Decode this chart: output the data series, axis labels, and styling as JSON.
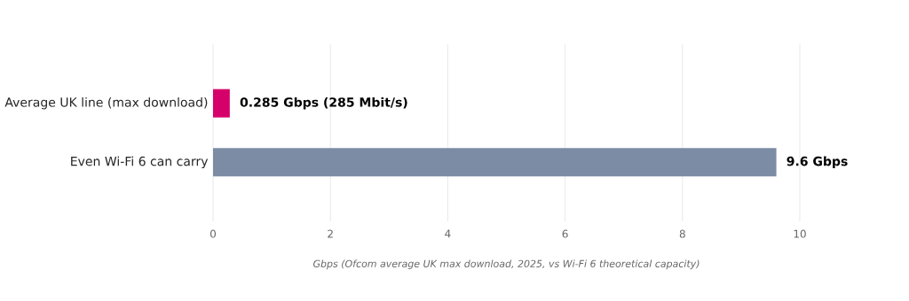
{
  "chart_data": {
    "type": "bar",
    "orientation": "horizontal",
    "categories": [
      "Average UK line (max download)",
      "Even Wi-Fi 6 can carry"
    ],
    "values": [
      0.285,
      9.6
    ],
    "colors": [
      "#d6006b",
      "#7b8ca4"
    ],
    "value_labels": [
      "0.285 Gbps (285 Mbit/s)",
      "9.6 Gbps"
    ],
    "xlabel": "Gbps (Ofcom average UK max download, 2025, vs Wi-Fi 6 theoretical capacity)",
    "xlim": [
      0,
      10
    ],
    "xticks": [
      0,
      2,
      4,
      6,
      8,
      10
    ],
    "grid": "x"
  }
}
